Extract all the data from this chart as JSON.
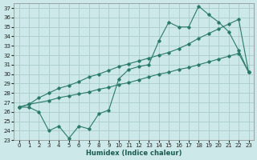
{
  "xlabel": "Humidex (Indice chaleur)",
  "bg_color": "#cce8e8",
  "grid_color": "#aacccc",
  "line_color": "#2a7a6a",
  "xlim": [
    -0.5,
    23.5
  ],
  "ylim": [
    23,
    37.5
  ],
  "xticks": [
    0,
    1,
    2,
    3,
    4,
    5,
    6,
    7,
    8,
    9,
    10,
    11,
    12,
    13,
    14,
    15,
    16,
    17,
    18,
    19,
    20,
    21,
    22,
    23
  ],
  "yticks": [
    23,
    24,
    25,
    26,
    27,
    28,
    29,
    30,
    31,
    32,
    33,
    34,
    35,
    36,
    37
  ],
  "line1_x": [
    0,
    1,
    2,
    3,
    4,
    5,
    6,
    7,
    8,
    9,
    10,
    11,
    12,
    13,
    14,
    15,
    16,
    17,
    18,
    19,
    20,
    21,
    22,
    23
  ],
  "line1_y": [
    26.5,
    26.5,
    26.0,
    24.0,
    24.5,
    23.2,
    24.5,
    24.2,
    25.8,
    26.2,
    29.5,
    30.5,
    30.8,
    31.0,
    33.5,
    35.5,
    35.0,
    35.0,
    37.2,
    36.3,
    35.5,
    34.5,
    32.5,
    30.2
  ],
  "line2_x": [
    0,
    1,
    3,
    4,
    5,
    6,
    7,
    8,
    9,
    10,
    11,
    12,
    13,
    14,
    15,
    16,
    17,
    18,
    19,
    20,
    21,
    22,
    23
  ],
  "line2_y": [
    26.5,
    26.8,
    27.2,
    27.5,
    27.7,
    27.9,
    28.1,
    28.4,
    28.6,
    28.9,
    29.1,
    29.4,
    29.7,
    30.0,
    30.2,
    30.5,
    30.7,
    31.0,
    31.3,
    31.6,
    31.9,
    32.2,
    30.2
  ],
  "line3_x": [
    0,
    1,
    2,
    3,
    4,
    5,
    6,
    7,
    8,
    9,
    10,
    11,
    12,
    13,
    14,
    15,
    16,
    17,
    18,
    19,
    20,
    21,
    22,
    23
  ],
  "line3_y": [
    26.5,
    26.8,
    27.5,
    28.0,
    28.5,
    28.8,
    29.2,
    29.7,
    30.0,
    30.4,
    30.8,
    31.1,
    31.4,
    31.7,
    32.0,
    32.3,
    32.7,
    33.2,
    33.8,
    34.3,
    34.8,
    35.3,
    35.8,
    30.2
  ]
}
